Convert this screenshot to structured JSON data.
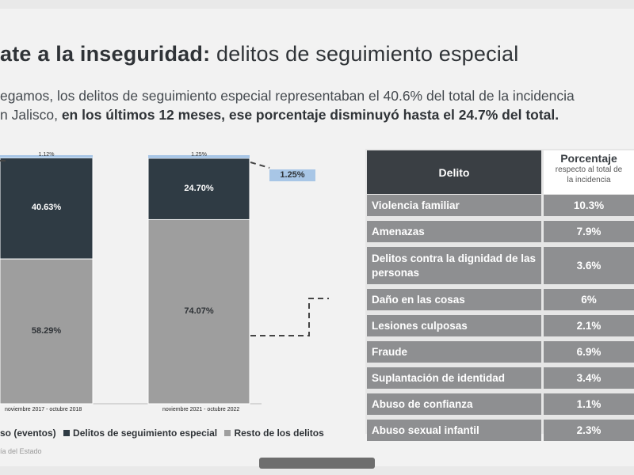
{
  "header": {
    "title_bold": "ate a la inseguridad:",
    "title_rest": " delitos de seguimiento especial",
    "intro_line1": "egamos, los delitos de seguimiento especial representaban el 40.6% del total de la incidencia",
    "intro_line2_plain": "n Jalisco, ",
    "intro_line2_bold": "en los últimos 12 meses, ese porcentaje disminuyó hasta el 24.7% del total."
  },
  "chart_data": {
    "type": "bar",
    "stacked": true,
    "categories": [
      "noviembre 2017 - octubre 2018",
      "noviembre 2021 - octubre 2022"
    ],
    "series": [
      {
        "name": "Resto de los delitos",
        "values": [
          58.29,
          74.07
        ],
        "labels": [
          "58.29%",
          "74.07%"
        ]
      },
      {
        "name": "Delitos de seguimiento especial",
        "values": [
          40.63,
          24.7
        ],
        "labels": [
          "40.63%",
          "24.70%"
        ]
      },
      {
        "name": "so (eventos)",
        "values": [
          1.12,
          1.25
        ],
        "labels": [
          "1.12%",
          "1.25%"
        ]
      }
    ],
    "callout": "1.25%",
    "colors": {
      "resto": "#9e9e9e",
      "seguimiento": "#2f3b44",
      "otro": "#a8c6e6"
    },
    "legend": [
      "so (eventos)",
      "Delitos de seguimiento especial",
      "Resto de los delitos"
    ],
    "legend_position": "bottom"
  },
  "source_text": "ía del Estado",
  "table": {
    "header_delito": "Delito",
    "header_pct_main": "Porcentaje",
    "header_pct_sub1": "respecto al total de",
    "header_pct_sub2": "la incidencia",
    "rows": [
      {
        "delito": "Violencia familiar",
        "pct": "10.3%"
      },
      {
        "delito": "Amenazas",
        "pct": "7.9%"
      },
      {
        "delito": "Delitos contra la dignidad de las personas",
        "pct": "3.6%"
      },
      {
        "delito": "Daño en las cosas",
        "pct": "6%"
      },
      {
        "delito": "Lesiones culposas",
        "pct": "2.1%"
      },
      {
        "delito": "Fraude",
        "pct": "6.9%"
      },
      {
        "delito": "Suplantación de identidad",
        "pct": "3.4%"
      },
      {
        "delito": "Abuso de confianza",
        "pct": "1.1%"
      },
      {
        "delito": "Abuso sexual infantil",
        "pct": "2.3%"
      }
    ]
  }
}
